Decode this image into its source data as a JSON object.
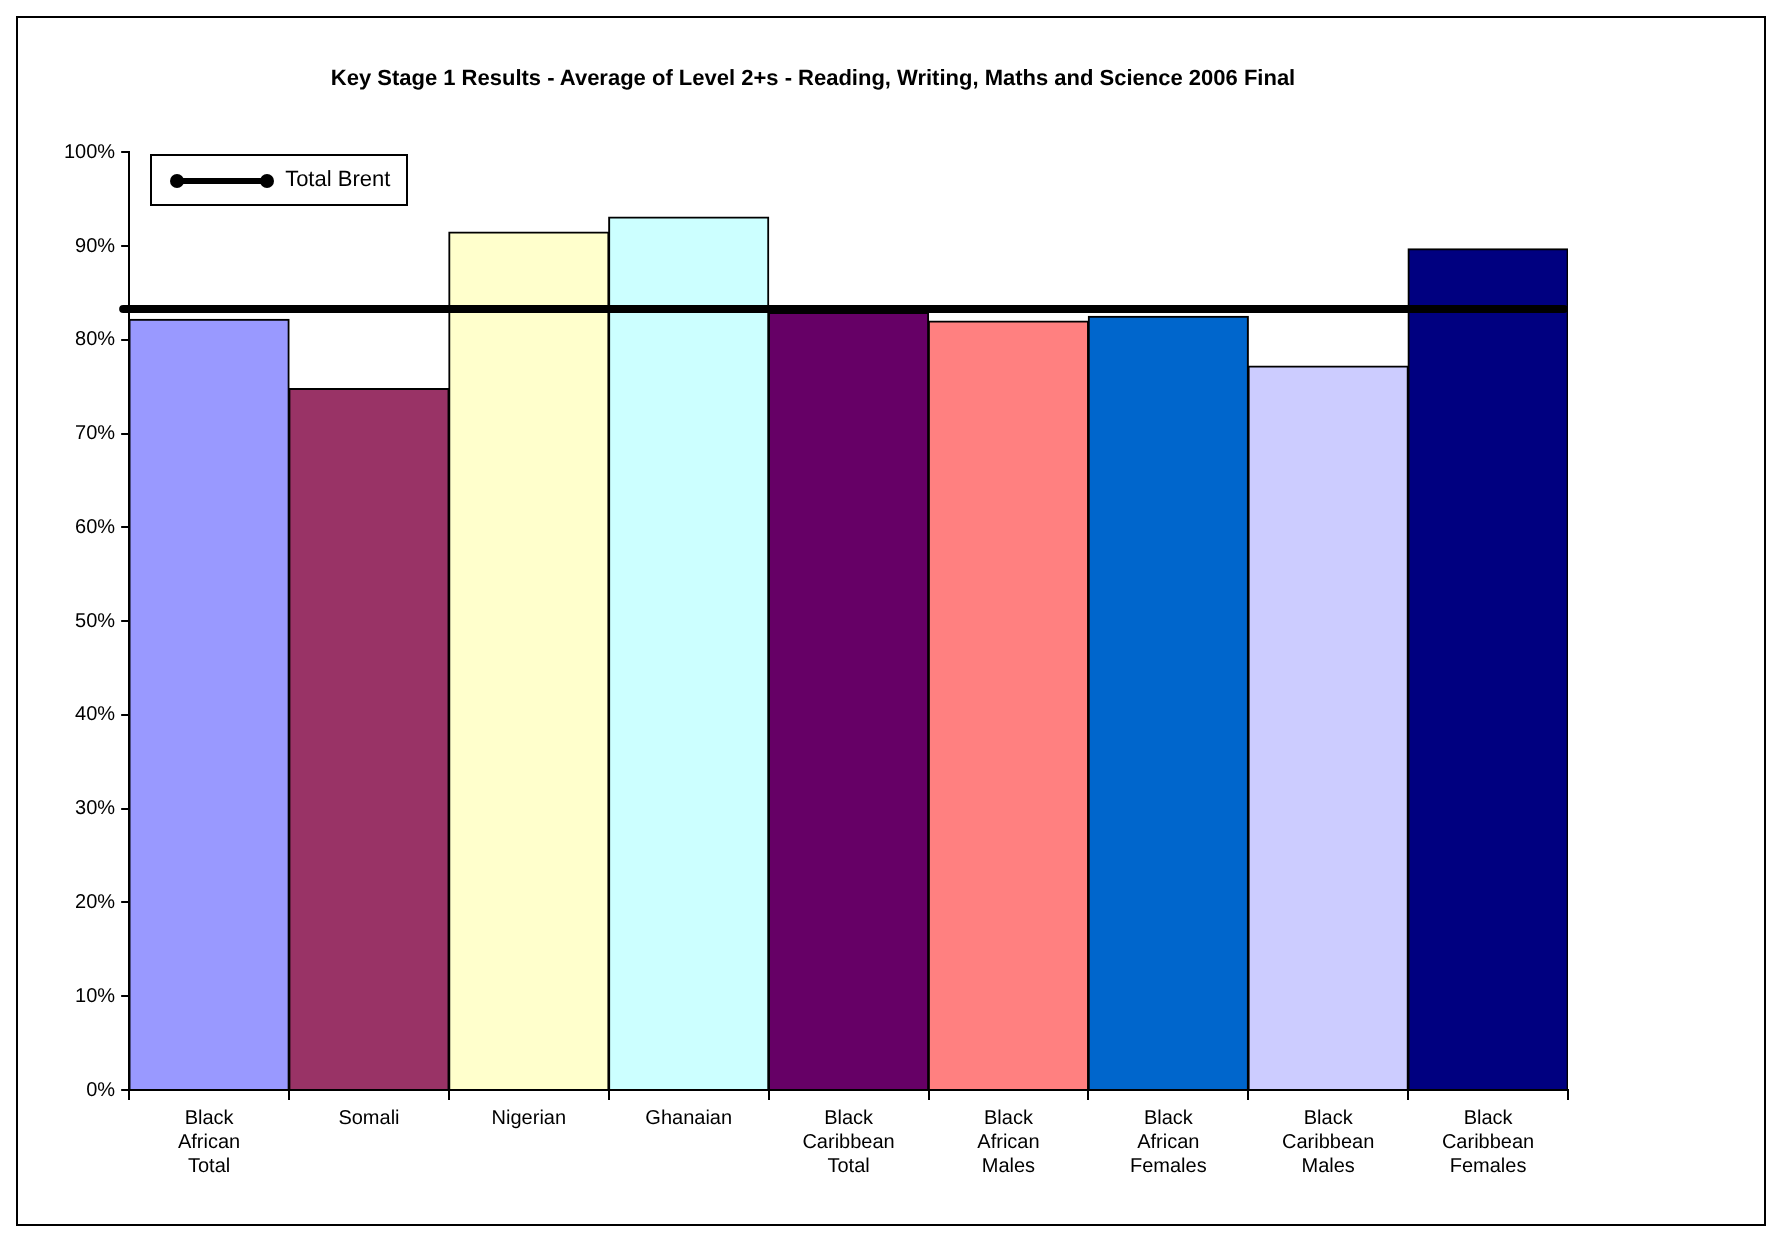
{
  "chart_data": {
    "type": "bar",
    "title": "Key Stage 1 Results - Average of Level 2+s - Reading, Writing, Maths and Science 2006 Final",
    "categories": [
      "Black African Total",
      "Somali",
      "Nigerian",
      "Ghanaian",
      "Black Caribbean Total",
      "Black African Males",
      "Black African Females",
      "Black Caribbean Males",
      "Black Caribbean Females"
    ],
    "values": [
      82.2,
      74.8,
      91.5,
      93.1,
      82.9,
      82.0,
      82.5,
      77.2,
      89.7
    ],
    "colors": [
      "#9999ff",
      "#993366",
      "#ffffcc",
      "#ccffff",
      "#660066",
      "#ff8080",
      "#0066cc",
      "#ccccff",
      "#000080"
    ],
    "ylim": [
      0,
      100
    ],
    "yticks": [
      {
        "value": 0,
        "label": "0%"
      },
      {
        "value": 10,
        "label": "10%"
      },
      {
        "value": 20,
        "label": "20%"
      },
      {
        "value": 30,
        "label": "30%"
      },
      {
        "value": 40,
        "label": "40%"
      },
      {
        "value": 50,
        "label": "50%"
      },
      {
        "value": 60,
        "label": "60%"
      },
      {
        "value": 70,
        "label": "70%"
      },
      {
        "value": 80,
        "label": "80%"
      },
      {
        "value": 90,
        "label": "90%"
      },
      {
        "value": 100,
        "label": "100%"
      }
    ],
    "ref_lines": [
      {
        "axis": "y",
        "value": 83.3,
        "label": "Total Brent",
        "color": "#000000"
      }
    ],
    "legend": "top left"
  }
}
